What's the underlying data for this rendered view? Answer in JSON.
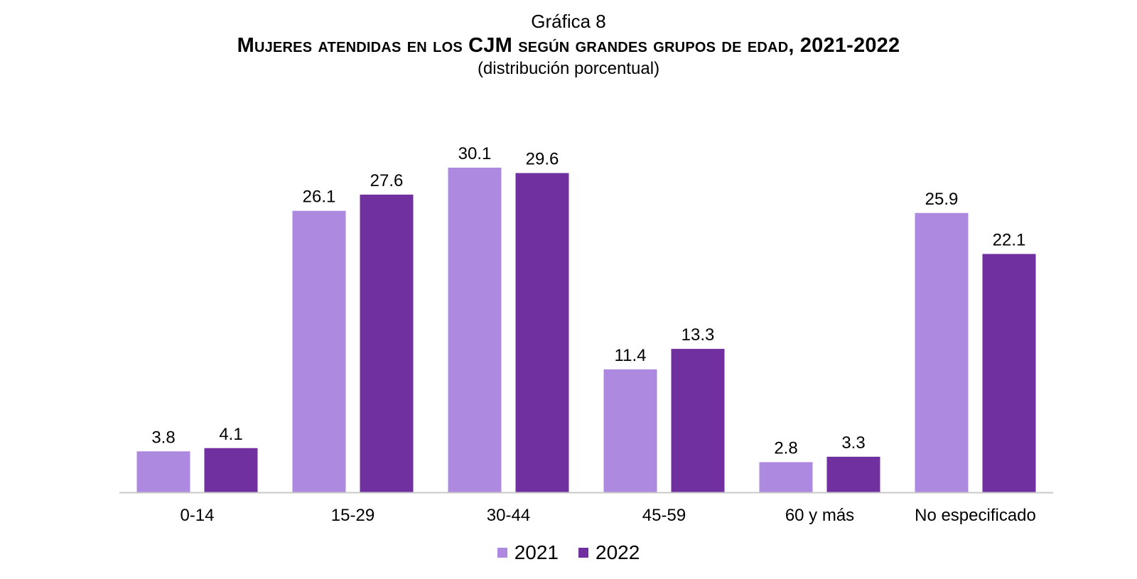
{
  "figure_label": "Gráfica 8",
  "colors": {
    "s2021": "#ae89e0",
    "s2022": "#70309f",
    "axis": "#c8c8c8"
  },
  "chart_data": {
    "type": "bar",
    "title": "Mujeres atendidas en los CJM según grandes grupos de edad, 2021-2022",
    "subtitle": "(distribución porcentual)",
    "categories": [
      "0-14",
      "15-29",
      "30-44",
      "45-59",
      "60 y más",
      "No especificado"
    ],
    "series": [
      {
        "name": "2021",
        "values": [
          3.8,
          26.1,
          30.1,
          11.4,
          2.8,
          25.9
        ]
      },
      {
        "name": "2022",
        "values": [
          4.1,
          27.6,
          29.6,
          13.3,
          3.3,
          22.1
        ]
      }
    ],
    "xlabel": "",
    "ylabel": "",
    "ylim": [
      0,
      30.1
    ],
    "grid": false,
    "legend": "bottom"
  }
}
